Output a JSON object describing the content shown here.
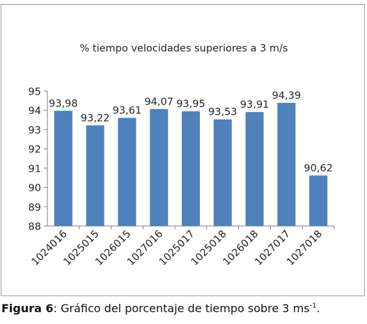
{
  "chart_data": {
    "type": "bar",
    "title": "% tiempo velocidades superiores a 3 m/s",
    "xlabel": "",
    "ylabel": "",
    "categories": [
      "1024016",
      "1025015",
      "1026015",
      "1027016",
      "1025017",
      "1025018",
      "1026018",
      "1027017",
      "1027018"
    ],
    "values": [
      93.98,
      93.22,
      93.61,
      94.07,
      93.95,
      93.53,
      93.91,
      94.39,
      90.62
    ],
    "value_labels": [
      "93,98",
      "93,22",
      "93,61",
      "94,07",
      "93,95",
      "93,53",
      "93,91",
      "94,39",
      "90,62"
    ],
    "ylim": [
      88,
      95
    ],
    "yticks": [
      88,
      89,
      90,
      91,
      92,
      93,
      94,
      95
    ],
    "grid": false,
    "legend": "none",
    "bar_color": "#4f81bd",
    "axis_color": "#7f7f7f"
  },
  "caption": {
    "label": "Figura 6",
    "text": ": Gráfico del porcentaje de tiempo sobre 3 ms",
    "superscript": "-1",
    "end": "."
  }
}
